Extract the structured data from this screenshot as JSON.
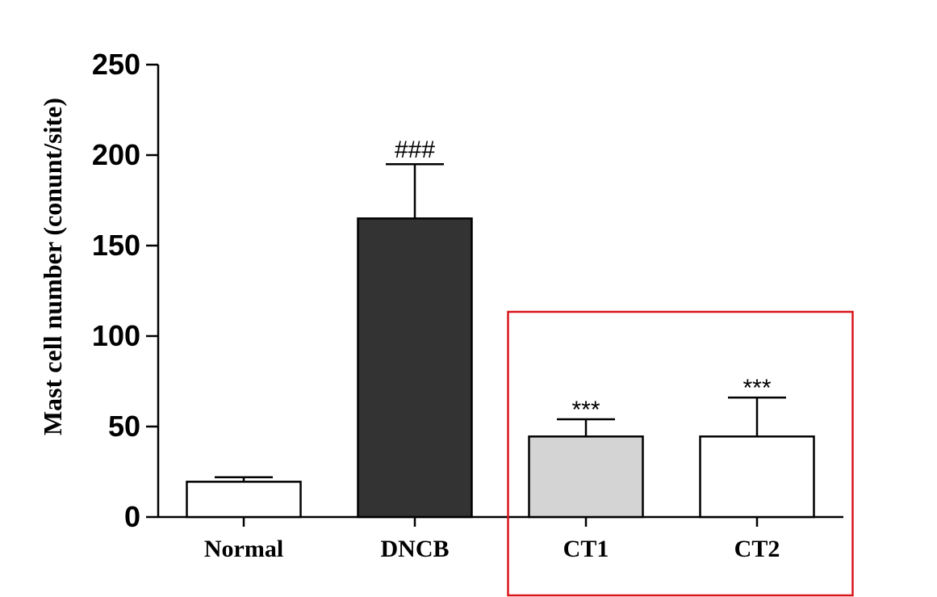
{
  "chart_data": {
    "type": "bar",
    "title": "",
    "xlabel": "",
    "ylabel": "Mast cell number (conunt/site)",
    "ylim": [
      0,
      250
    ],
    "yticks": [
      "0",
      "50",
      "100",
      "150",
      "200",
      "250"
    ],
    "categories": [
      "Normal",
      "DNCB",
      "CT1",
      "CT2"
    ],
    "values": [
      19.5,
      165,
      44.5,
      44.5
    ],
    "errors": [
      2.5,
      30,
      9.5,
      21.5
    ],
    "annotations": [
      "",
      "###",
      "***",
      "***"
    ],
    "bar_colors": [
      "#ffffff",
      "#333333",
      "#d4d4d4",
      "#ffffff"
    ],
    "highlight": {
      "groups": [
        "CT1",
        "CT2"
      ],
      "color": "#d9161c"
    },
    "grid": false,
    "legend": "none"
  }
}
